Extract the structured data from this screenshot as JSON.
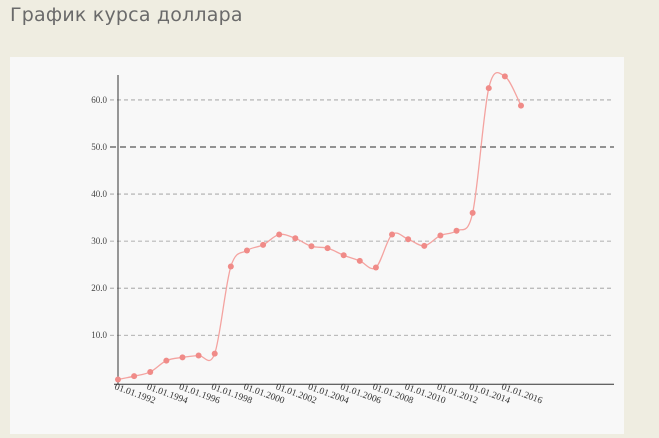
{
  "page": {
    "title": "График курса доллара"
  },
  "chart_data": {
    "type": "line",
    "title": "",
    "xlabel": "",
    "ylabel": "",
    "ylim": [
      0,
      67
    ],
    "yticks": [
      "10.0",
      "20.0",
      "30.0",
      "40.0",
      "50.0",
      "60.0"
    ],
    "ytick_values": [
      10,
      20,
      30,
      40,
      50,
      60
    ],
    "xtick_labels": [
      "01.01.1992",
      "01.01.1994",
      "01.01.1996",
      "01.01.1998",
      "01.01.2000",
      "01.01.2002",
      "01.01.2004",
      "01.01.2006",
      "01.01.2008",
      "01.01.2010",
      "01.01.2012",
      "01.01.2014",
      "01.01.2016"
    ],
    "xtick_years": [
      1992,
      1994,
      1996,
      1998,
      2000,
      2002,
      2004,
      2006,
      2008,
      2010,
      2012,
      2014,
      2016
    ],
    "x": [
      1991,
      1992,
      1993,
      1994,
      1995,
      1996,
      1997,
      1998,
      1999,
      2000,
      2001,
      2002,
      2003,
      2004,
      2005,
      2006,
      2007,
      2008,
      2009,
      2010,
      2011,
      2012,
      2013,
      2014,
      2015,
      2016
    ],
    "series": [
      {
        "values": [
          0.6,
          1.3,
          2.2,
          4.6,
          5.3,
          5.7,
          6.1,
          24.6,
          28.0,
          29.2,
          31.4,
          30.6,
          28.9,
          28.5,
          27.0,
          25.8,
          24.4,
          31.4,
          30.4,
          29.0,
          31.2,
          32.2,
          36.0,
          62.5,
          65.0,
          58.8
        ]
      }
    ],
    "highlight_line": 50,
    "grid": true,
    "legend": "none",
    "colors": {
      "line": "#f4a3a0",
      "marker": "#f08b88",
      "grid": "#999999",
      "axis": "#333333"
    }
  }
}
